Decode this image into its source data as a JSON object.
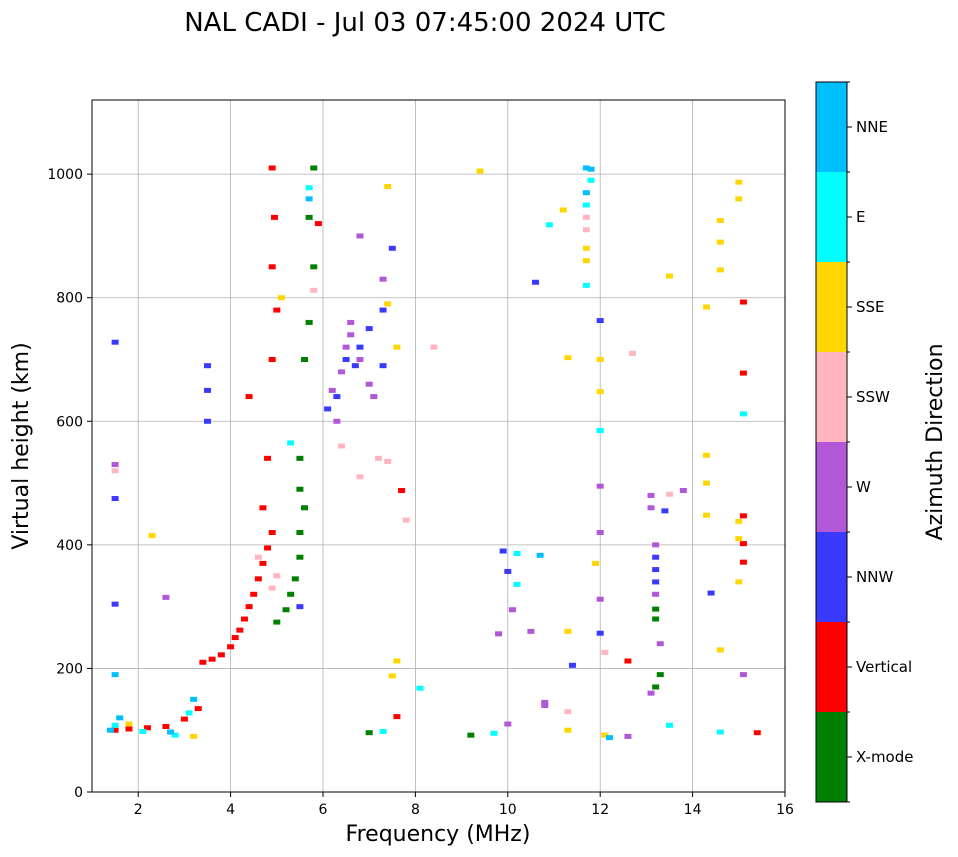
{
  "chart_data": {
    "type": "scatter",
    "title": "NAL CADI - Jul 03 07:45:00 2024 UTC",
    "xlabel": "Frequency (MHz)",
    "ylabel": "Virtual height (km)",
    "xlim": [
      1,
      16
    ],
    "ylim": [
      0,
      1120
    ],
    "xticks": [
      2,
      4,
      6,
      8,
      10,
      12,
      14,
      16
    ],
    "yticks": [
      0,
      200,
      400,
      600,
      800,
      1000
    ],
    "grid": true,
    "colorbar": {
      "label": "Azimuth Direction",
      "categories": [
        {
          "name": "X-mode",
          "color": "#008000"
        },
        {
          "name": "Vertical",
          "color": "#ff0000"
        },
        {
          "name": "NNW",
          "color": "#3a3aff"
        },
        {
          "name": "W",
          "color": "#b157d8"
        },
        {
          "name": "SSW",
          "color": "#ffb6c1"
        },
        {
          "name": "SSE",
          "color": "#ffd700"
        },
        {
          "name": "E",
          "color": "#00ffff"
        },
        {
          "name": "NNE",
          "color": "#00bfff"
        }
      ]
    },
    "traces": [
      {
        "name": "Vertical",
        "points": [
          [
            1.5,
            100
          ],
          [
            1.8,
            102
          ],
          [
            2.2,
            104
          ],
          [
            2.6,
            106
          ],
          [
            3.0,
            118
          ],
          [
            3.3,
            135
          ],
          [
            3.4,
            210
          ],
          [
            3.6,
            215
          ],
          [
            3.8,
            222
          ],
          [
            4.0,
            235
          ],
          [
            4.1,
            250
          ],
          [
            4.2,
            262
          ],
          [
            4.3,
            280
          ],
          [
            4.4,
            300
          ],
          [
            4.5,
            320
          ],
          [
            4.6,
            345
          ],
          [
            4.7,
            370
          ],
          [
            4.8,
            395
          ],
          [
            4.9,
            420
          ],
          [
            4.7,
            460
          ],
          [
            4.8,
            540
          ],
          [
            4.4,
            640
          ],
          [
            4.9,
            700
          ],
          [
            5.0,
            780
          ],
          [
            4.9,
            850
          ],
          [
            4.95,
            930
          ],
          [
            4.9,
            1010
          ],
          [
            12.6,
            212
          ],
          [
            15.1,
            793
          ],
          [
            15.1,
            678
          ],
          [
            15.1,
            447
          ],
          [
            15.1,
            402
          ],
          [
            15.1,
            372
          ],
          [
            15.4,
            96
          ],
          [
            7.6,
            122
          ],
          [
            7.7,
            488
          ],
          [
            5.9,
            920
          ]
        ]
      },
      {
        "name": "X-mode",
        "points": [
          [
            5.0,
            275
          ],
          [
            5.2,
            295
          ],
          [
            5.3,
            320
          ],
          [
            5.4,
            345
          ],
          [
            5.5,
            380
          ],
          [
            5.5,
            420
          ],
          [
            5.6,
            460
          ],
          [
            5.5,
            490
          ],
          [
            5.5,
            540
          ],
          [
            5.6,
            700
          ],
          [
            5.7,
            760
          ],
          [
            5.8,
            850
          ],
          [
            5.7,
            930
          ],
          [
            5.8,
            1010
          ],
          [
            13.2,
            280
          ],
          [
            13.2,
            296
          ],
          [
            13.3,
            190
          ],
          [
            13.2,
            170
          ],
          [
            9.2,
            92
          ],
          [
            7.0,
            96
          ]
        ]
      },
      {
        "name": "NNW",
        "points": [
          [
            3.5,
            600
          ],
          [
            3.5,
            650
          ],
          [
            3.5,
            690
          ],
          [
            5.5,
            300
          ],
          [
            6.1,
            620
          ],
          [
            6.3,
            640
          ],
          [
            6.5,
            700
          ],
          [
            6.7,
            690
          ],
          [
            6.8,
            720
          ],
          [
            7.0,
            750
          ],
          [
            7.3,
            780
          ],
          [
            7.5,
            880
          ],
          [
            1.5,
            728
          ],
          [
            1.5,
            475
          ],
          [
            1.5,
            304
          ],
          [
            12.0,
            763
          ],
          [
            12.0,
            257
          ],
          [
            11.4,
            205
          ],
          [
            14.4,
            322
          ],
          [
            10.6,
            825
          ],
          [
            9.9,
            390
          ],
          [
            10.0,
            357
          ],
          [
            13.2,
            340
          ],
          [
            13.2,
            360
          ],
          [
            13.2,
            380
          ],
          [
            13.4,
            455
          ],
          [
            7.3,
            690
          ]
        ]
      },
      {
        "name": "W",
        "points": [
          [
            6.2,
            650
          ],
          [
            6.4,
            680
          ],
          [
            6.5,
            720
          ],
          [
            6.6,
            740
          ],
          [
            6.8,
            700
          ],
          [
            7.0,
            660
          ],
          [
            7.1,
            640
          ],
          [
            6.3,
            600
          ],
          [
            6.6,
            760
          ],
          [
            6.8,
            900
          ],
          [
            7.3,
            830
          ],
          [
            1.5,
            530
          ],
          [
            10.0,
            110
          ],
          [
            13.2,
            320
          ],
          [
            13.2,
            400
          ],
          [
            13.1,
            480
          ],
          [
            13.1,
            460
          ],
          [
            13.1,
            160
          ],
          [
            13.3,
            240
          ],
          [
            9.8,
            256
          ],
          [
            10.1,
            295
          ],
          [
            10.5,
            260
          ],
          [
            10.8,
            145
          ],
          [
            10.8,
            140
          ],
          [
            12.0,
            495
          ],
          [
            12.0,
            420
          ],
          [
            12.0,
            312
          ],
          [
            12.6,
            90
          ],
          [
            13.8,
            488
          ],
          [
            15.1,
            190
          ],
          [
            2.6,
            315
          ]
        ]
      },
      {
        "name": "SSW",
        "points": [
          [
            4.9,
            330
          ],
          [
            5.0,
            350
          ],
          [
            4.6,
            380
          ],
          [
            5.8,
            812
          ],
          [
            6.4,
            560
          ],
          [
            6.8,
            510
          ],
          [
            7.2,
            540
          ],
          [
            7.4,
            535
          ],
          [
            7.8,
            440
          ],
          [
            8.4,
            720
          ],
          [
            11.7,
            930
          ],
          [
            11.7,
            910
          ],
          [
            12.7,
            710
          ],
          [
            13.5,
            482
          ],
          [
            11.3,
            130
          ],
          [
            12.1,
            226
          ],
          [
            1.5,
            520
          ]
        ]
      },
      {
        "name": "SSE",
        "points": [
          [
            3.2,
            90
          ],
          [
            1.8,
            110
          ],
          [
            2.3,
            415
          ],
          [
            5.1,
            800
          ],
          [
            7.4,
            980
          ],
          [
            7.4,
            790
          ],
          [
            7.6,
            720
          ],
          [
            9.4,
            1005
          ],
          [
            11.7,
            880
          ],
          [
            11.7,
            860
          ],
          [
            12.0,
            700
          ],
          [
            12.0,
            648
          ],
          [
            12.1,
            92
          ],
          [
            11.9,
            370
          ],
          [
            14.3,
            545
          ],
          [
            14.3,
            500
          ],
          [
            14.3,
            448
          ],
          [
            14.3,
            785
          ],
          [
            14.6,
            925
          ],
          [
            14.6,
            890
          ],
          [
            14.6,
            845
          ],
          [
            14.6,
            230
          ],
          [
            15.0,
            987
          ],
          [
            15.0,
            960
          ],
          [
            15.0,
            438
          ],
          [
            15.0,
            410
          ],
          [
            15.0,
            340
          ],
          [
            13.5,
            835
          ],
          [
            11.2,
            942
          ],
          [
            11.3,
            260
          ],
          [
            11.3,
            100
          ],
          [
            11.3,
            703
          ],
          [
            7.6,
            212
          ],
          [
            7.5,
            188
          ]
        ]
      },
      {
        "name": "E",
        "points": [
          [
            1.5,
            108
          ],
          [
            2.1,
            98
          ],
          [
            2.8,
            92
          ],
          [
            3.1,
            128
          ],
          [
            5.3,
            565
          ],
          [
            5.7,
            978
          ],
          [
            10.2,
            386
          ],
          [
            10.2,
            336
          ],
          [
            10.9,
            918
          ],
          [
            11.7,
            820
          ],
          [
            11.7,
            950
          ],
          [
            11.8,
            990
          ],
          [
            12.0,
            585
          ],
          [
            13.5,
            108
          ],
          [
            14.6,
            97
          ],
          [
            15.1,
            612
          ],
          [
            9.7,
            95
          ],
          [
            8.1,
            168
          ],
          [
            7.3,
            98
          ]
        ]
      },
      {
        "name": "NNE",
        "points": [
          [
            1.4,
            100
          ],
          [
            1.6,
            120
          ],
          [
            1.5,
            190
          ],
          [
            2.7,
            97
          ],
          [
            3.2,
            150
          ],
          [
            11.7,
            1010
          ],
          [
            11.7,
            970
          ],
          [
            11.8,
            1008
          ],
          [
            5.7,
            960
          ],
          [
            12.2,
            88
          ],
          [
            10.7,
            383
          ]
        ]
      }
    ]
  }
}
